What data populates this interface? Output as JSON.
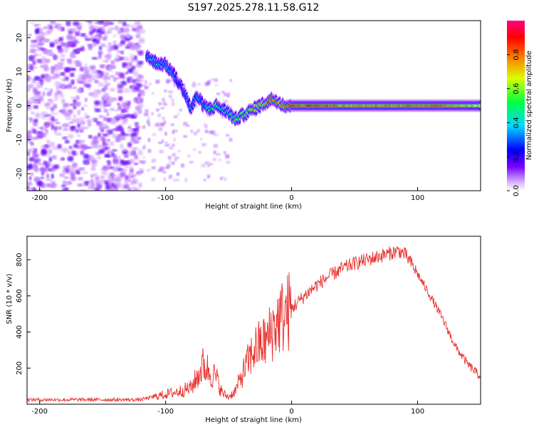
{
  "title": "S197.2025.278.11.58.G12",
  "chart_data": [
    {
      "type": "heatmap",
      "title": "S197.2025.278.11.58.G12",
      "xlabel": "Height of straight line (km)",
      "ylabel": "Frequency (Hz)",
      "xlim": [
        -210,
        150
      ],
      "ylim": [
        -25,
        25
      ],
      "x_ticks": [
        -200,
        -100,
        0,
        100
      ],
      "y_ticks": [
        -20,
        -10,
        0,
        10,
        20
      ],
      "colorbar": {
        "label": "Normalized spectral amplitude",
        "range": [
          0.0,
          1.0
        ],
        "ticks": [
          0.0,
          0.2,
          0.4,
          0.6,
          0.8
        ],
        "tick_labels": [
          "0.0",
          "0.2",
          "0.4",
          "0.6",
          "0.8"
        ]
      },
      "ridge": {
        "x": [
          -115,
          -110,
          -100,
          -95,
          -90,
          -85,
          -80,
          -75,
          -70,
          -65,
          -60,
          -55,
          -50,
          -45,
          -40,
          -35,
          -30,
          -25,
          -20,
          -15,
          -10,
          -5,
          0,
          10,
          20,
          40,
          60,
          80,
          100,
          120,
          150
        ],
        "freq": [
          15,
          13,
          12,
          10,
          7,
          4,
          -1,
          3,
          0,
          -1,
          0,
          -1,
          -2,
          -4,
          -3,
          -2,
          -1,
          0,
          1,
          2,
          1,
          0,
          0,
          0,
          0,
          0,
          0,
          0,
          0,
          0,
          0
        ],
        "amplitude": [
          0.3,
          0.35,
          0.4,
          0.35,
          0.3,
          0.3,
          0.35,
          0.3,
          0.4,
          0.45,
          0.5,
          0.4,
          0.45,
          0.5,
          0.55,
          0.6,
          0.7,
          0.75,
          0.8,
          0.85,
          0.8,
          0.85,
          0.9,
          0.85,
          0.9,
          0.8,
          0.8,
          0.8,
          0.85,
          0.85,
          0.7
        ]
      },
      "noise_region_x": [
        -210,
        -118
      ]
    },
    {
      "type": "line",
      "xlabel": "Height of straight line (km)",
      "ylabel": "SNR (10 * v/v)",
      "xlim": [
        -210,
        150
      ],
      "ylim": [
        0,
        930
      ],
      "x_ticks": [
        -200,
        -100,
        0,
        100
      ],
      "y_ticks": [
        200,
        400,
        600,
        800
      ],
      "color": "#e8302c",
      "series": [
        {
          "name": "SNR",
          "x": [
            -210,
            -180,
            -150,
            -120,
            -110,
            -100,
            -90,
            -80,
            -75,
            -70,
            -65,
            -60,
            -55,
            -50,
            -45,
            -40,
            -35,
            -30,
            -25,
            -20,
            -15,
            -10,
            -5,
            0,
            10,
            20,
            30,
            40,
            50,
            60,
            70,
            80,
            85,
            90,
            95,
            100,
            110,
            120,
            130,
            140,
            150
          ],
          "y": [
            25,
            25,
            25,
            25,
            40,
            55,
            70,
            90,
            150,
            220,
            180,
            150,
            60,
            40,
            70,
            150,
            230,
            300,
            330,
            350,
            420,
            470,
            500,
            530,
            600,
            660,
            710,
            750,
            780,
            800,
            820,
            840,
            850,
            830,
            780,
            720,
            600,
            470,
            320,
            220,
            150
          ]
        }
      ]
    }
  ]
}
